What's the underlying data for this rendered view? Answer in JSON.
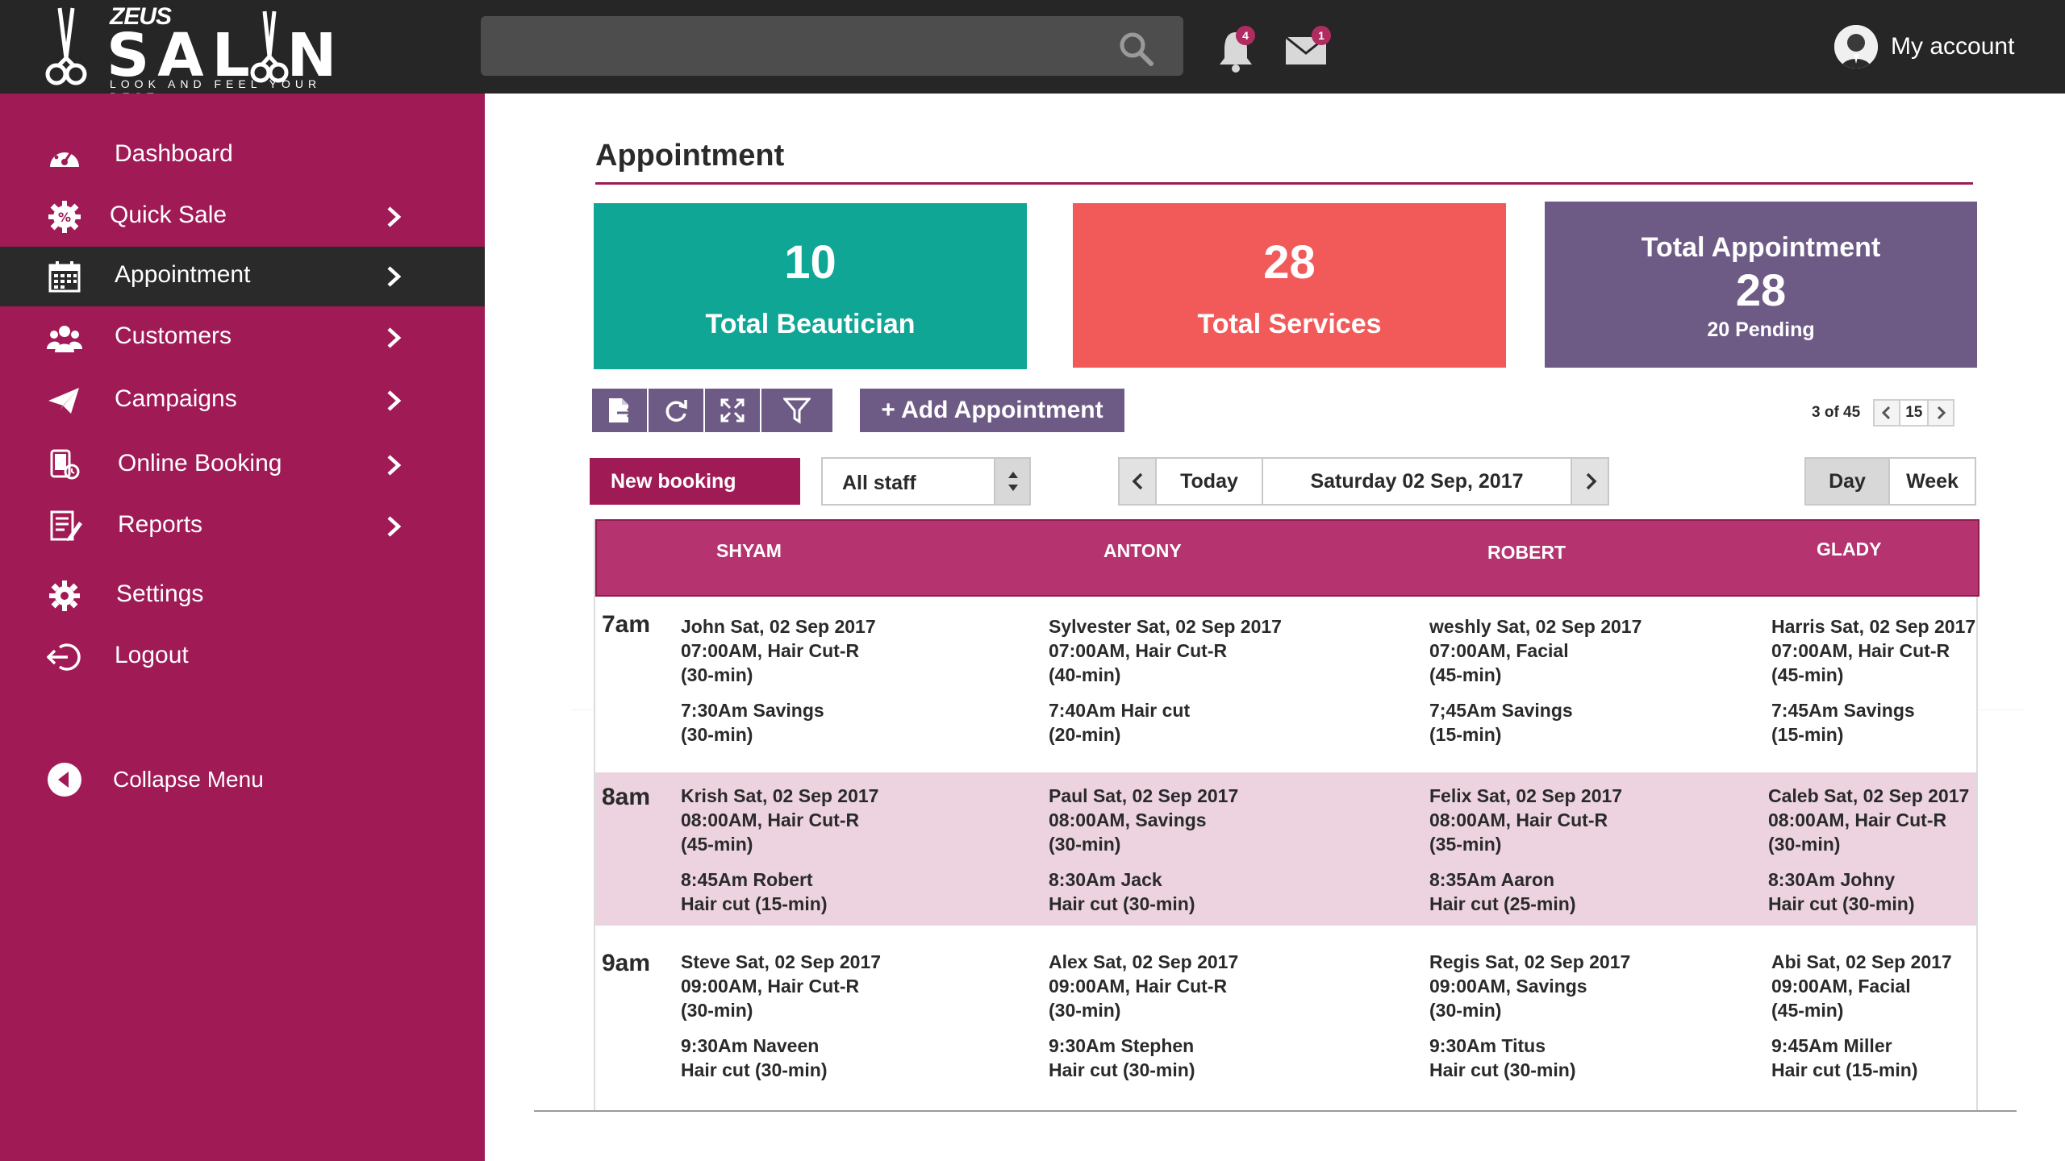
{
  "brand": {
    "top_text": "ZEUS",
    "name": "SAL  N",
    "tagline": "LOOK AND FEEL YOUR BEST"
  },
  "header": {
    "search_placeholder": "",
    "notifications_count": "4",
    "messages_count": "1",
    "account_label": "My account"
  },
  "sidebar": {
    "items": [
      {
        "label": "Dashboard",
        "icon": "dashboard-icon",
        "has_chevron": false
      },
      {
        "label": "Quick Sale",
        "icon": "percent-gear-icon",
        "has_chevron": true
      },
      {
        "label": "Appointment",
        "icon": "calendar-icon",
        "has_chevron": true,
        "active": true
      },
      {
        "label": "Customers",
        "icon": "customers-icon",
        "has_chevron": true
      },
      {
        "label": "Campaigns",
        "icon": "paper-plane-icon",
        "has_chevron": true
      },
      {
        "label": "Online Booking",
        "icon": "online-booking-icon",
        "has_chevron": true
      },
      {
        "label": "Reports",
        "icon": "reports-icon",
        "has_chevron": true
      },
      {
        "label": "Settings",
        "icon": "gear-icon",
        "has_chevron": false
      },
      {
        "label": "Logout",
        "icon": "logout-icon",
        "has_chevron": false
      }
    ],
    "collapse_label": "Collapse Menu"
  },
  "main": {
    "title": "Appointment",
    "cards": {
      "beautician": {
        "value": "10",
        "label": "Total Beautician"
      },
      "services": {
        "value": "28",
        "label": "Total Services"
      },
      "appointment": {
        "label": "Total Appointment",
        "value": "28",
        "sub": "20 Pending"
      }
    },
    "toolbar": {
      "add_appointment": "+ Add Appointment",
      "icons": [
        "export-icon",
        "refresh-icon",
        "expand-icon",
        "filter-icon"
      ]
    },
    "pager": {
      "count": "3 of 45",
      "page": "15"
    },
    "controls": {
      "new_booking": "New booking",
      "staff_select": "All staff",
      "today": "Today",
      "date": "Saturday 02 Sep, 2017",
      "view_day": "Day",
      "view_week": "Week"
    },
    "schedule": {
      "staff": [
        "SHYAM",
        "ANTONY",
        "ROBERT",
        "GLADY"
      ],
      "hours": [
        "7am",
        "8am",
        "9am"
      ],
      "rows": [
        [
          {
            "line1": "John Sat, 02 Sep 2017",
            "line2": "07:00AM, Hair Cut-R",
            "line3": "(30-min)",
            "line4": "7:30Am  Savings",
            "line5": "(30-min)"
          },
          {
            "line1": "Sylvester Sat, 02 Sep 2017",
            "line2": "07:00AM, Hair Cut-R",
            "line3": "(40-min)",
            "line4": "7:40Am  Hair cut",
            "line5": "(20-min)"
          },
          {
            "line1": "weshly Sat, 02 Sep 2017",
            "line2": "07:00AM, Facial",
            "line3": "(45-min)",
            "line4": "7;45Am  Savings",
            "line5": "(15-min)"
          },
          {
            "line1": "Harris Sat, 02 Sep 2017",
            "line2": "07:00AM, Hair Cut-R",
            "line3": "(45-min)",
            "line4": "7:45Am  Savings",
            "line5": "(15-min)"
          }
        ],
        [
          {
            "line1": "Krish Sat, 02 Sep 2017",
            "line2": "08:00AM, Hair Cut-R",
            "line3": "(45-min)",
            "line4": "8:45Am  Robert",
            "line5": "Hair cut (15-min)"
          },
          {
            "line1": "Paul Sat, 02 Sep 2017",
            "line2": "08:00AM, Savings",
            "line3": "(30-min)",
            "line4": "8:30Am  Jack",
            "line5": "Hair cut (30-min)"
          },
          {
            "line1": "Felix Sat, 02 Sep 2017",
            "line2": "08:00AM, Hair Cut-R",
            "line3": "(35-min)",
            "line4": "8:35Am  Aaron",
            "line5": "Hair cut (25-min)"
          },
          {
            "line1": "Caleb Sat, 02 Sep 2017",
            "line2": "08:00AM, Hair Cut-R",
            "line3": "(30-min)",
            "line4": "8:30Am  Johny",
            "line5": "Hair cut (30-min)"
          }
        ],
        [
          {
            "line1": "Steve Sat, 02 Sep 2017",
            "line2": "09:00AM, Hair Cut-R",
            "line3": "(30-min)",
            "line4": "9:30Am  Naveen",
            "line5": "Hair cut (30-min)"
          },
          {
            "line1": "Alex Sat, 02 Sep 2017",
            "line2": "09:00AM, Hair Cut-R",
            "line3": "(30-min)",
            "line4": "9:30Am  Stephen",
            "line5": "Hair cut (30-min)"
          },
          {
            "line1": "Regis Sat, 02 Sep 2017",
            "line2": "09:00AM, Savings",
            "line3": "(30-min)",
            "line4": "9:30Am  Titus",
            "line5": "Hair cut (30-min)"
          },
          {
            "line1": "Abi Sat, 02 Sep 2017",
            "line2": "09:00AM, Facial",
            "line3": "(45-min)",
            "line4": "9:45Am  Miller",
            "line5": "Hair cut (15-min)"
          }
        ]
      ]
    }
  },
  "colors": {
    "sidebar": "#a01a55",
    "topbar": "#262626",
    "teal": "#0fa696",
    "coral": "#f25a5a",
    "purple": "#6d5b86",
    "header_row": "#b5336f",
    "highlight_row": "#ecd3df"
  }
}
